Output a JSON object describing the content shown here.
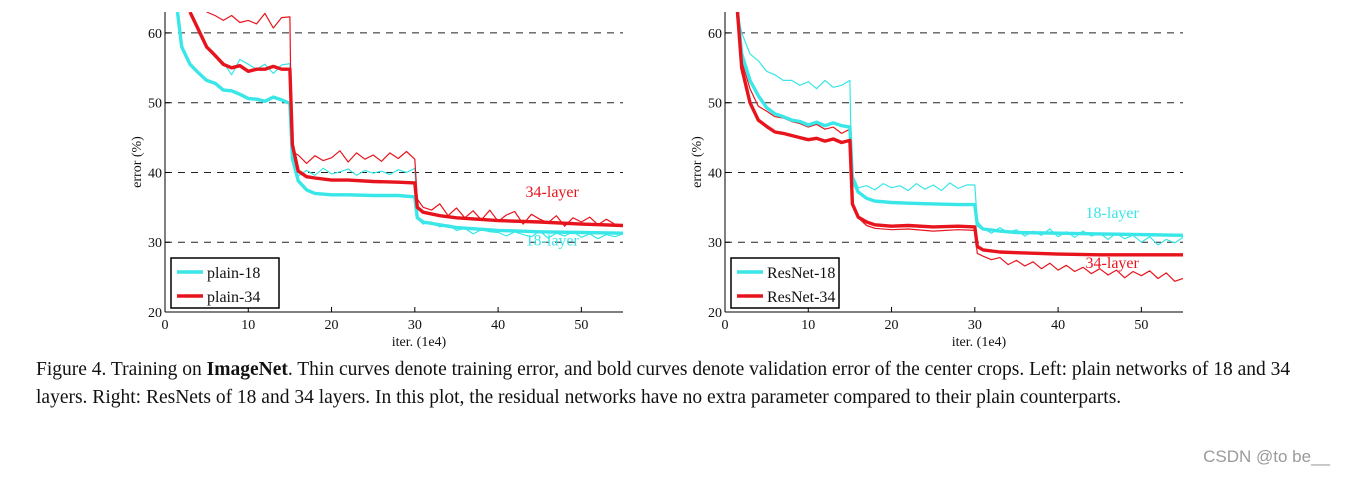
{
  "chart_data": [
    {
      "type": "line",
      "xlabel": "iter. (1e4)",
      "ylabel": "error (%)",
      "xlim": [
        0,
        55
      ],
      "ylim": [
        20,
        63
      ],
      "xticks": [
        0,
        10,
        20,
        30,
        40,
        50
      ],
      "yticks": [
        20,
        30,
        40,
        50,
        60
      ],
      "grid": "dashed horizontal",
      "legend_position": "bottom-left",
      "legend": [
        "plain-18",
        "plain-34"
      ],
      "annotations": [
        {
          "text": "34-layer",
          "x": 46.5,
          "y": 36.5,
          "color": "#e8141d"
        },
        {
          "text": "18-layer",
          "x": 46.5,
          "y": 29.5,
          "color": "#39e6e8"
        }
      ],
      "series": [
        {
          "name": "plain-18",
          "kind": "validation",
          "color": "#39e6e8",
          "x": [
            1.5,
            2,
            3,
            4,
            5,
            6,
            7,
            8,
            9,
            10,
            11,
            12,
            13,
            14,
            15,
            15.3,
            16,
            17,
            18,
            20,
            22,
            25,
            28,
            30,
            30.3,
            31,
            33,
            35,
            40,
            45,
            50,
            55
          ],
          "y": [
            63,
            58,
            55.5,
            54.3,
            53.2,
            52.8,
            51.8,
            51.7,
            51.2,
            50.6,
            50.5,
            50.2,
            50.8,
            50.4,
            49.9,
            42,
            38.8,
            37.5,
            37.0,
            36.8,
            36.8,
            36.7,
            36.7,
            36.5,
            33.5,
            32.9,
            32.5,
            32.1,
            31.7,
            31.5,
            31.4,
            31.3
          ]
        },
        {
          "name": "plain-34",
          "kind": "validation",
          "color": "#e8141d",
          "x": [
            3,
            4,
            5,
            6,
            7,
            8,
            9,
            10,
            11,
            12,
            13,
            14,
            15,
            15.3,
            16,
            17,
            18,
            20,
            22,
            25,
            28,
            30,
            30.3,
            31,
            33,
            35,
            40,
            45,
            50,
            55
          ],
          "y": [
            63,
            60.5,
            58,
            56.8,
            55.5,
            55,
            55.3,
            54.5,
            54.8,
            54.8,
            55.2,
            54.8,
            54.8,
            44,
            40.2,
            39.4,
            39.2,
            38.9,
            38.9,
            38.7,
            38.6,
            38.5,
            35,
            34.3,
            33.8,
            33.5,
            33.1,
            32.9,
            32.6,
            32.4
          ]
        },
        {
          "name": "plain-18 train",
          "kind": "training",
          "color": "#39e6e8",
          "x": [
            4,
            5,
            6,
            7,
            8,
            9,
            10,
            11,
            12,
            13,
            14,
            15,
            15.2,
            16,
            17,
            18,
            19,
            20,
            21,
            22,
            23,
            24,
            25,
            26,
            27,
            28,
            29,
            30,
            30.3,
            31,
            32,
            33,
            34,
            35,
            36,
            37,
            38,
            39,
            40,
            41,
            42,
            43,
            44,
            45,
            46,
            47,
            48,
            49,
            50,
            51,
            52,
            53,
            54,
            55
          ],
          "y": [
            60,
            58,
            56.5,
            55.8,
            54,
            56.2,
            55.5,
            54.8,
            55.5,
            54.2,
            55.4,
            55.6,
            42,
            39.5,
            40.3,
            39.6,
            40.6,
            39.8,
            40.1,
            40.5,
            39.6,
            40.3,
            39.9,
            40.2,
            39.7,
            40.4,
            40.0,
            40.6,
            33.5,
            32.6,
            32.9,
            32.2,
            32.5,
            31.7,
            32.0,
            31.2,
            31.8,
            31.5,
            31.4,
            30.9,
            31.5,
            31.1,
            30.8,
            31.6,
            30.6,
            31.3,
            30.9,
            31.5,
            30.7,
            31.2,
            30.5,
            31.1,
            30.8,
            31.2
          ]
        },
        {
          "name": "plain-34 train",
          "kind": "training",
          "color": "#e8141d",
          "x": [
            5,
            6,
            7,
            8,
            9,
            10,
            11,
            12,
            13,
            14,
            15,
            15.2,
            16,
            17,
            18,
            19,
            20,
            21,
            22,
            23,
            24,
            25,
            26,
            27,
            28,
            29,
            30,
            30.3,
            31,
            32,
            33,
            34,
            35,
            36,
            37,
            38,
            39,
            40,
            41,
            42,
            43,
            44,
            45,
            46,
            47,
            48,
            49,
            50,
            51,
            52,
            53,
            54,
            55
          ],
          "y": [
            63,
            62.5,
            61.8,
            62.5,
            61.5,
            61.8,
            61.3,
            62.8,
            60.7,
            62.2,
            62.3,
            43,
            42.5,
            41.3,
            42.4,
            41.7,
            42.1,
            43.1,
            41.5,
            42.8,
            41.9,
            42.5,
            41.6,
            42.8,
            42.0,
            43.0,
            41.9,
            36.2,
            35.0,
            34.6,
            35.5,
            33.8,
            34.9,
            33.5,
            34.5,
            33.2,
            34.6,
            33.0,
            33.9,
            34.4,
            32.6,
            34.0,
            33.3,
            32.8,
            33.8,
            32.3,
            33.5,
            32.9,
            33.6,
            32.5,
            33.3,
            32.6,
            32.4
          ]
        }
      ]
    },
    {
      "type": "line",
      "xlabel": "iter. (1e4)",
      "ylabel": "error (%)",
      "xlim": [
        0,
        55
      ],
      "ylim": [
        20,
        63
      ],
      "xticks": [
        0,
        10,
        20,
        30,
        40,
        50
      ],
      "yticks": [
        20,
        30,
        40,
        50,
        60
      ],
      "grid": "dashed horizontal",
      "legend_position": "bottom-left",
      "legend": [
        "ResNet-18",
        "ResNet-34"
      ],
      "annotations": [
        {
          "text": "18-layer",
          "x": 46.5,
          "y": 33.5,
          "color": "#39e6e8"
        },
        {
          "text": "34-layer",
          "x": 46.5,
          "y": 26.3,
          "color": "#e8141d"
        }
      ],
      "series": [
        {
          "name": "ResNet-18",
          "kind": "validation",
          "color": "#39e6e8",
          "x": [
            1.5,
            2,
            3,
            4,
            5,
            6,
            7,
            8,
            9,
            10,
            11,
            12,
            13,
            14,
            15,
            15.3,
            16,
            17,
            18,
            20,
            22,
            25,
            28,
            30,
            30.3,
            31,
            33,
            35,
            40,
            45,
            50,
            55
          ],
          "y": [
            63,
            57,
            53.2,
            51,
            49.3,
            48.4,
            48.0,
            47.5,
            47.3,
            46.8,
            47.2,
            46.7,
            47.1,
            46.7,
            46.5,
            39,
            37.2,
            36.3,
            35.9,
            35.7,
            35.6,
            35.5,
            35.4,
            35.4,
            32.5,
            31.9,
            31.6,
            31.4,
            31.3,
            31.2,
            31.1,
            31.0
          ]
        },
        {
          "name": "ResNet-34",
          "kind": "validation",
          "color": "#e8141d",
          "x": [
            1.5,
            2,
            3,
            4,
            5,
            6,
            7,
            8,
            9,
            10,
            11,
            12,
            13,
            14,
            15,
            15.3,
            16,
            17,
            18,
            20,
            22,
            25,
            28,
            30,
            30.3,
            31,
            33,
            35,
            40,
            45,
            50,
            55
          ],
          "y": [
            63,
            55,
            50,
            47.5,
            46.6,
            45.8,
            45.6,
            45.3,
            45.0,
            44.7,
            44.9,
            44.5,
            44.8,
            44.3,
            44.6,
            35.5,
            33.6,
            32.9,
            32.5,
            32.3,
            32.4,
            32.2,
            32.3,
            32.2,
            29.4,
            28.9,
            28.6,
            28.5,
            28.3,
            28.2,
            28.2,
            28.2
          ]
        },
        {
          "name": "ResNet-18 train",
          "kind": "training",
          "color": "#39e6e8",
          "x": [
            1.5,
            2,
            3,
            4,
            5,
            6,
            7,
            8,
            9,
            10,
            11,
            12,
            13,
            14,
            15,
            15.2,
            16,
            17,
            18,
            19,
            20,
            21,
            22,
            23,
            24,
            25,
            26,
            27,
            28,
            29,
            30,
            30.3,
            31,
            32,
            33,
            34,
            35,
            36,
            37,
            38,
            39,
            40,
            41,
            42,
            43,
            44,
            45,
            46,
            47,
            48,
            49,
            50,
            51,
            52,
            53,
            54,
            55
          ],
          "y": [
            63,
            60,
            57,
            56,
            54.5,
            54.0,
            53.2,
            53.2,
            52.5,
            53.0,
            52.0,
            53.2,
            52.2,
            52.5,
            53.2,
            40,
            37.8,
            38.1,
            37.5,
            38.4,
            37.8,
            38.1,
            37.4,
            38.4,
            37.6,
            38.2,
            37.4,
            38.5,
            37.7,
            38.2,
            38.2,
            33,
            32.0,
            31.3,
            32.1,
            31.4,
            31.8,
            30.9,
            31.6,
            31.0,
            31.9,
            30.8,
            31.5,
            30.7,
            31.6,
            30.9,
            31.3,
            30.4,
            31.3,
            30.5,
            31.0,
            30.0,
            30.8,
            29.6,
            30.4,
            29.9,
            30.7
          ]
        },
        {
          "name": "ResNet-34 train",
          "kind": "training",
          "color": "#e8141d",
          "x": [
            1.5,
            2,
            3,
            4,
            5,
            6,
            7,
            8,
            9,
            10,
            11,
            12,
            13,
            14,
            15,
            15.2,
            16,
            17,
            18,
            20,
            22,
            25,
            28,
            30,
            30.3,
            31,
            32,
            33,
            34,
            35,
            36,
            37,
            38,
            39,
            40,
            41,
            42,
            43,
            44,
            45,
            46,
            47,
            48,
            49,
            50,
            51,
            52,
            53,
            54,
            55
          ],
          "y": [
            63,
            56,
            52,
            49.5,
            48.8,
            48.0,
            47.8,
            47.3,
            47.0,
            46.5,
            46.9,
            46.2,
            46.5,
            45.6,
            46.2,
            36,
            33.5,
            32.4,
            32.0,
            31.8,
            31.9,
            31.6,
            31.8,
            31.7,
            28.4,
            28.0,
            27.5,
            27.8,
            26.8,
            27.4,
            26.6,
            27.2,
            26.2,
            27.0,
            26.0,
            26.7,
            25.8,
            26.4,
            25.5,
            26.2,
            25.3,
            26.0,
            24.9,
            25.8,
            25.2,
            25.9,
            24.8,
            25.6,
            24.4,
            24.8
          ]
        }
      ]
    }
  ],
  "caption": {
    "prefix": "Figure 4. Training on ",
    "bold": "ImageNet",
    "rest": ". Thin curves denote training error, and bold curves denote validation error of the center crops. Left: plain networks of 18 and 34 layers. Right: ResNets of 18 and 34 layers. In this plot, the residual networks have no extra parameter compared to their plain counterparts."
  },
  "watermark": "CSDN @to be__"
}
